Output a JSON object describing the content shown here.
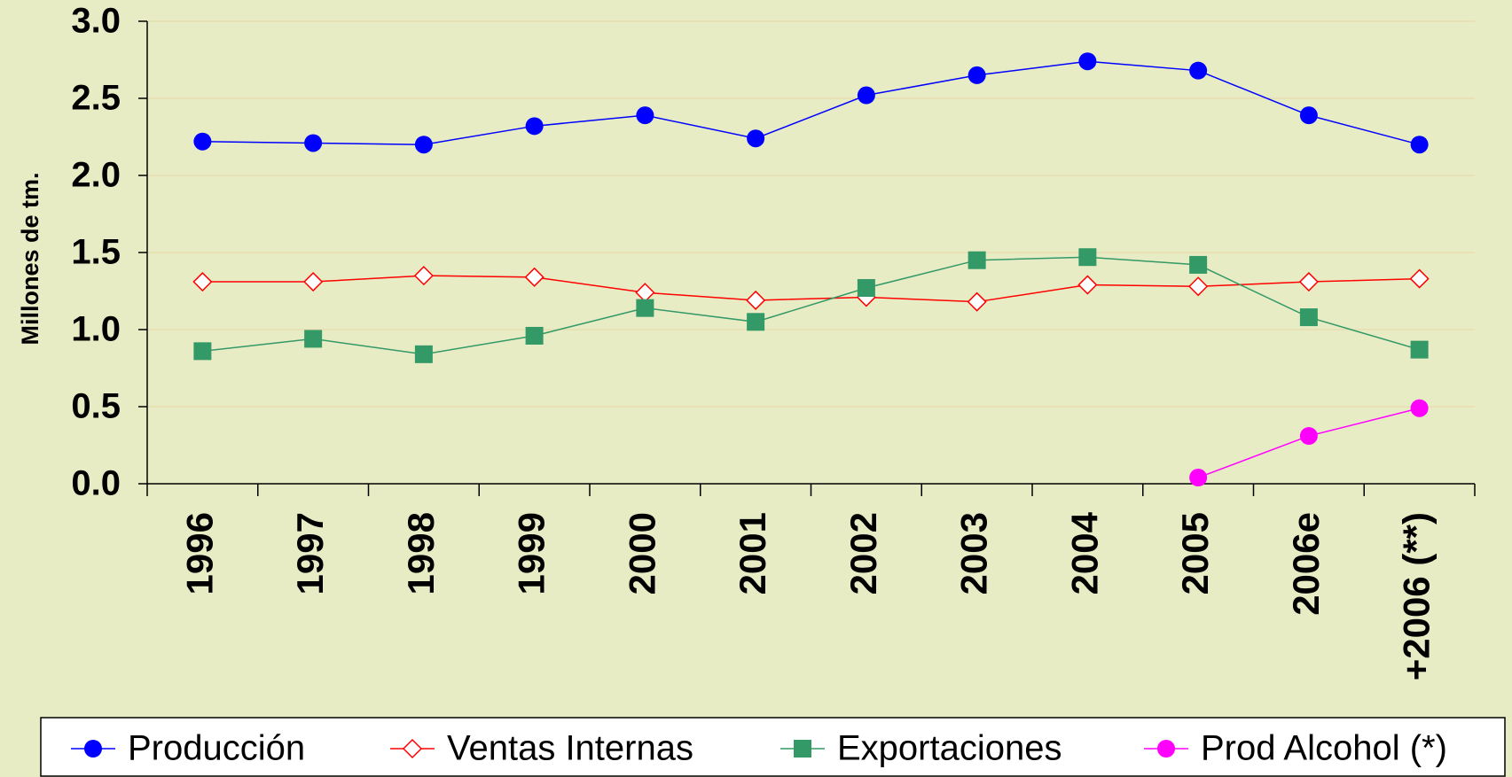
{
  "chart_data": {
    "type": "line",
    "y_label": "Millones de tm.",
    "categories": [
      "1996",
      "1997",
      "1998",
      "1999",
      "2000",
      "2001",
      "2002",
      "2003",
      "2004",
      "2005",
      "2006e",
      "+2006 (**)"
    ],
    "series": [
      {
        "name": "Producción",
        "color": "#0000ff",
        "marker": "circle",
        "values": [
          2.22,
          2.21,
          2.2,
          2.32,
          2.39,
          2.24,
          2.52,
          2.65,
          2.74,
          2.68,
          2.39,
          2.2
        ]
      },
      {
        "name": "Ventas Internas",
        "color": "#ff0000",
        "marker": "diamond-open",
        "values": [
          1.31,
          1.31,
          1.35,
          1.34,
          1.24,
          1.19,
          1.21,
          1.18,
          1.29,
          1.28,
          1.31,
          1.33
        ]
      },
      {
        "name": "Exportaciones",
        "color": "#339966",
        "marker": "square",
        "values": [
          0.86,
          0.94,
          0.84,
          0.96,
          1.14,
          1.05,
          1.27,
          1.45,
          1.47,
          1.42,
          1.08,
          0.87
        ]
      },
      {
        "name": "Prod Alcohol (*)",
        "color": "#ff00ff",
        "marker": "circle",
        "values": [
          null,
          null,
          null,
          null,
          null,
          null,
          null,
          null,
          null,
          0.04,
          0.31,
          0.49
        ]
      }
    ],
    "ylim": [
      0,
      3
    ],
    "yticks": [
      {
        "value": 0,
        "label": "0.0"
      },
      0.5,
      {
        "value": 1,
        "label": "1.0"
      },
      1.5,
      {
        "value": 2,
        "label": "2.0"
      },
      2.5,
      {
        "value": 3,
        "label": "3.0"
      }
    ],
    "grid": true,
    "legend": "bottom"
  }
}
